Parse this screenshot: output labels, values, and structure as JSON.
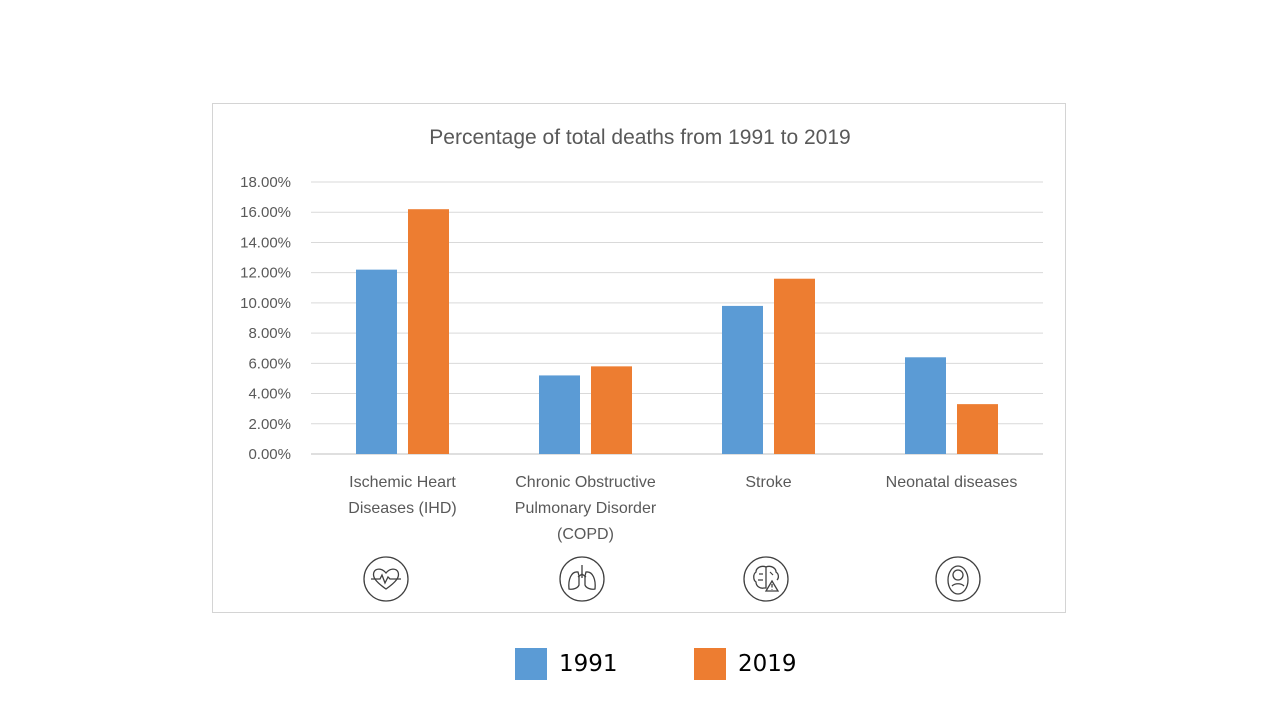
{
  "chart_data": {
    "type": "bar",
    "title": "Percentage of total deaths from 1991  to 2019",
    "categories": [
      [
        "Ischemic Heart",
        "Diseases (IHD)"
      ],
      [
        "Chronic Obstructive",
        "Pulmonary Disorder",
        "(COPD)"
      ],
      [
        "Stroke"
      ],
      [
        "Neonatal diseases"
      ]
    ],
    "series": [
      {
        "name": "1991",
        "color": "#5b9bd5",
        "values": [
          12.2,
          5.2,
          9.8,
          6.4
        ]
      },
      {
        "name": "2019",
        "color": "#ed7d31",
        "values": [
          16.2,
          5.8,
          11.6,
          3.3
        ]
      }
    ],
    "yticks": [
      "0.00%",
      "2.00%",
      "4.00%",
      "6.00%",
      "8.00%",
      "10.00%",
      "12.00%",
      "14.00%",
      "16.00%",
      "18.00%"
    ],
    "ylim": [
      0,
      18
    ],
    "grid": true,
    "legend_position": "bottom",
    "icons": [
      "heart-pulse-icon",
      "lungs-icon",
      "brain-warning-icon",
      "baby-icon"
    ]
  }
}
